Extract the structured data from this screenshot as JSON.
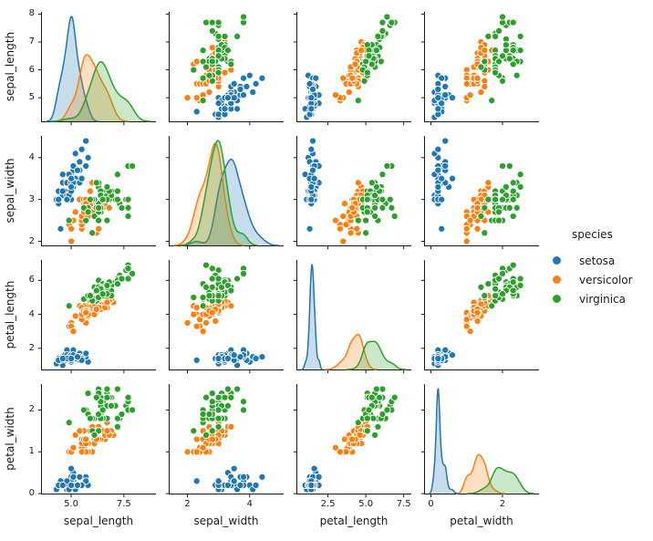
{
  "figure": {
    "background": "#ffffff",
    "text_color": "#1a1a1a"
  },
  "legend": {
    "title": "species",
    "entries": [
      {
        "label": "setosa",
        "color": "#1f77b4"
      },
      {
        "label": "versicolor",
        "color": "#ff7f0e"
      },
      {
        "label": "virginica",
        "color": "#2ca02c"
      }
    ]
  },
  "chart_data": {
    "type": "scatter",
    "subtype": "pairplot-matrix",
    "diagonal": "kde",
    "grid": false,
    "legend_position": "center-right",
    "variables": [
      "sepal_length",
      "sepal_width",
      "petal_length",
      "petal_width"
    ],
    "axes": {
      "x_limits": [
        [
          3.57,
          9.02
        ],
        [
          1.4,
          5.09
        ],
        [
          0.42,
          8.0
        ],
        [
          -0.19,
          3.02
        ]
      ],
      "y_limits": [
        [
          4.12,
          8.08
        ],
        [
          1.88,
          4.52
        ],
        [
          0.7,
          7.2
        ],
        [
          -0.02,
          2.62
        ]
      ],
      "x_ticks": [
        {
          "values": [
            5.0,
            7.5
          ],
          "labels": [
            "5.0",
            "7.5"
          ]
        },
        {
          "values": [
            2,
            4
          ],
          "labels": [
            "2",
            "4"
          ]
        },
        {
          "values": [
            2.5,
            5.0,
            7.5
          ],
          "labels": [
            "2.5",
            "5.0",
            "7.5"
          ]
        },
        {
          "values": [
            0,
            2
          ],
          "labels": [
            "0",
            "2"
          ]
        }
      ],
      "y_ticks": [
        {
          "values": [
            5,
            6,
            7,
            8
          ],
          "labels": [
            "5",
            "6",
            "7",
            "8"
          ]
        },
        {
          "values": [
            2,
            3,
            4
          ],
          "labels": [
            "2",
            "3",
            "4"
          ]
        },
        {
          "values": [
            2,
            4,
            6
          ],
          "labels": [
            "2",
            "4",
            "6"
          ]
        },
        {
          "values": [
            0,
            1,
            2
          ],
          "labels": [
            "0",
            "1",
            "2"
          ]
        }
      ]
    },
    "series": [
      {
        "name": "setosa",
        "color": "#1f77b4",
        "points": {
          "sepal_length": [
            5.1,
            4.9,
            4.7,
            4.6,
            5.0,
            5.4,
            4.6,
            5.0,
            4.4,
            4.9,
            5.4,
            4.8,
            4.8,
            4.3,
            5.8,
            5.7,
            5.4,
            5.1,
            5.7,
            5.1,
            5.4,
            5.1,
            4.6,
            5.1,
            4.8,
            5.0,
            5.0,
            5.2,
            5.2,
            4.7,
            4.8,
            5.4,
            5.2,
            5.5,
            4.9,
            5.0,
            5.5,
            4.9,
            4.4,
            5.1,
            5.0,
            4.5,
            4.4,
            5.0,
            5.1,
            4.8,
            5.1,
            4.6,
            5.3,
            5.0
          ],
          "sepal_width": [
            3.5,
            3.0,
            3.2,
            3.1,
            3.6,
            3.9,
            3.4,
            3.4,
            2.9,
            3.1,
            3.7,
            3.4,
            3.0,
            3.0,
            4.0,
            4.4,
            3.9,
            3.5,
            3.8,
            3.8,
            3.4,
            3.7,
            3.6,
            3.3,
            3.4,
            3.0,
            3.4,
            3.5,
            3.4,
            3.2,
            3.1,
            3.4,
            4.1,
            4.2,
            3.1,
            3.2,
            3.5,
            3.6,
            3.0,
            3.4,
            3.5,
            2.3,
            3.2,
            3.5,
            3.8,
            3.0,
            3.8,
            3.2,
            3.7,
            3.3
          ],
          "petal_length": [
            1.4,
            1.4,
            1.3,
            1.5,
            1.4,
            1.7,
            1.4,
            1.5,
            1.4,
            1.5,
            1.5,
            1.6,
            1.4,
            1.1,
            1.2,
            1.5,
            1.3,
            1.4,
            1.7,
            1.5,
            1.7,
            1.5,
            1.0,
            1.7,
            1.9,
            1.6,
            1.6,
            1.5,
            1.4,
            1.6,
            1.6,
            1.5,
            1.5,
            1.4,
            1.5,
            1.2,
            1.3,
            1.4,
            1.3,
            1.5,
            1.3,
            1.3,
            1.3,
            1.6,
            1.9,
            1.4,
            1.6,
            1.4,
            1.5,
            1.4
          ],
          "petal_width": [
            0.2,
            0.2,
            0.2,
            0.2,
            0.2,
            0.4,
            0.3,
            0.2,
            0.2,
            0.1,
            0.2,
            0.2,
            0.1,
            0.1,
            0.2,
            0.4,
            0.4,
            0.3,
            0.3,
            0.3,
            0.2,
            0.4,
            0.2,
            0.5,
            0.2,
            0.2,
            0.4,
            0.2,
            0.2,
            0.2,
            0.2,
            0.4,
            0.1,
            0.2,
            0.2,
            0.2,
            0.2,
            0.1,
            0.2,
            0.2,
            0.3,
            0.3,
            0.2,
            0.6,
            0.4,
            0.3,
            0.2,
            0.2,
            0.2,
            0.2
          ]
        }
      },
      {
        "name": "versicolor",
        "color": "#ff7f0e",
        "points": {
          "sepal_length": [
            7.0,
            6.4,
            6.9,
            5.5,
            6.5,
            5.7,
            6.3,
            4.9,
            6.6,
            5.2,
            5.0,
            5.9,
            6.0,
            6.1,
            5.6,
            6.7,
            5.6,
            5.8,
            6.2,
            5.6,
            5.9,
            6.1,
            6.3,
            6.1,
            6.4,
            6.6,
            6.8,
            6.7,
            6.0,
            5.7,
            5.5,
            5.5,
            5.8,
            6.0,
            5.4,
            6.0,
            6.7,
            6.3,
            5.6,
            5.5,
            5.5,
            6.1,
            5.8,
            5.0,
            5.6,
            5.7,
            5.7,
            6.2,
            5.1,
            5.7
          ],
          "sepal_width": [
            3.2,
            3.2,
            3.1,
            2.3,
            2.8,
            2.8,
            3.3,
            2.4,
            2.9,
            2.7,
            2.0,
            3.0,
            2.2,
            2.9,
            2.9,
            3.1,
            3.0,
            2.7,
            2.2,
            2.5,
            3.2,
            2.8,
            2.5,
            2.8,
            2.9,
            3.0,
            2.8,
            3.0,
            2.9,
            2.6,
            2.4,
            2.4,
            2.7,
            2.7,
            3.0,
            3.4,
            3.1,
            2.3,
            3.0,
            2.5,
            2.6,
            3.0,
            2.6,
            2.3,
            2.7,
            3.0,
            2.9,
            2.9,
            2.5,
            2.8
          ],
          "petal_length": [
            4.7,
            4.5,
            4.9,
            4.0,
            4.6,
            4.5,
            4.7,
            3.3,
            4.6,
            3.9,
            3.5,
            4.2,
            4.0,
            4.7,
            3.6,
            4.4,
            4.5,
            4.1,
            4.5,
            3.9,
            4.8,
            4.0,
            4.9,
            4.7,
            4.3,
            4.4,
            4.8,
            5.0,
            4.5,
            3.5,
            3.8,
            3.7,
            3.9,
            5.1,
            4.5,
            4.5,
            4.7,
            4.4,
            4.1,
            4.0,
            4.4,
            4.6,
            4.0,
            3.3,
            4.2,
            4.2,
            4.2,
            4.3,
            3.0,
            4.1
          ],
          "petal_width": [
            1.4,
            1.5,
            1.5,
            1.3,
            1.5,
            1.3,
            1.6,
            1.0,
            1.3,
            1.4,
            1.0,
            1.5,
            1.0,
            1.4,
            1.3,
            1.4,
            1.5,
            1.0,
            1.5,
            1.1,
            1.8,
            1.3,
            1.5,
            1.2,
            1.3,
            1.4,
            1.4,
            1.7,
            1.5,
            1.0,
            1.1,
            1.0,
            1.2,
            1.6,
            1.5,
            1.6,
            1.5,
            1.3,
            1.3,
            1.3,
            1.2,
            1.4,
            1.2,
            1.0,
            1.3,
            1.2,
            1.3,
            1.3,
            1.1,
            1.3
          ]
        }
      },
      {
        "name": "virginica",
        "color": "#2ca02c",
        "points": {
          "sepal_length": [
            6.3,
            5.8,
            7.1,
            6.3,
            6.5,
            7.6,
            4.9,
            7.3,
            6.7,
            7.2,
            6.5,
            6.4,
            6.8,
            5.7,
            5.8,
            6.4,
            6.5,
            7.7,
            7.7,
            6.0,
            6.9,
            5.6,
            7.7,
            6.3,
            6.7,
            7.2,
            6.2,
            6.1,
            6.4,
            7.2,
            7.4,
            7.9,
            6.4,
            6.3,
            6.1,
            7.7,
            6.3,
            6.4,
            6.0,
            6.9,
            6.7,
            6.9,
            5.8,
            6.8,
            6.7,
            6.7,
            6.3,
            6.5,
            6.2,
            5.9
          ],
          "sepal_width": [
            3.3,
            2.7,
            3.0,
            2.9,
            3.0,
            3.0,
            2.5,
            2.9,
            2.5,
            3.6,
            3.2,
            2.7,
            3.0,
            2.5,
            2.8,
            3.2,
            3.0,
            3.8,
            2.6,
            2.2,
            3.2,
            2.8,
            2.8,
            2.7,
            3.3,
            3.2,
            2.8,
            3.0,
            2.8,
            3.0,
            2.8,
            3.8,
            2.8,
            2.8,
            2.6,
            3.0,
            3.4,
            3.1,
            3.0,
            3.1,
            3.1,
            3.1,
            2.7,
            3.2,
            3.3,
            3.0,
            2.5,
            3.0,
            3.4,
            3.0
          ],
          "petal_length": [
            6.0,
            5.1,
            5.9,
            5.6,
            5.8,
            6.6,
            4.5,
            6.3,
            5.8,
            6.1,
            5.1,
            5.3,
            5.5,
            5.0,
            5.1,
            5.3,
            5.5,
            6.7,
            6.9,
            5.0,
            5.7,
            4.9,
            6.7,
            4.9,
            5.7,
            6.0,
            4.8,
            4.9,
            5.6,
            5.8,
            6.1,
            6.4,
            5.6,
            5.1,
            5.6,
            6.1,
            5.6,
            5.5,
            4.8,
            5.4,
            5.6,
            5.1,
            5.1,
            5.9,
            5.7,
            5.2,
            5.0,
            5.2,
            5.4,
            5.1
          ],
          "petal_width": [
            2.5,
            1.9,
            2.1,
            1.8,
            2.2,
            2.1,
            1.7,
            1.8,
            1.8,
            2.5,
            2.0,
            1.9,
            2.1,
            2.0,
            2.4,
            2.3,
            1.8,
            2.2,
            2.3,
            1.5,
            2.3,
            2.0,
            2.0,
            1.8,
            2.1,
            1.8,
            1.8,
            1.8,
            2.1,
            1.6,
            1.9,
            2.0,
            2.2,
            1.5,
            1.4,
            2.3,
            2.4,
            1.8,
            1.8,
            2.1,
            2.4,
            2.3,
            1.9,
            2.3,
            2.5,
            2.3,
            1.9,
            2.0,
            2.3,
            1.8
          ]
        }
      }
    ]
  }
}
